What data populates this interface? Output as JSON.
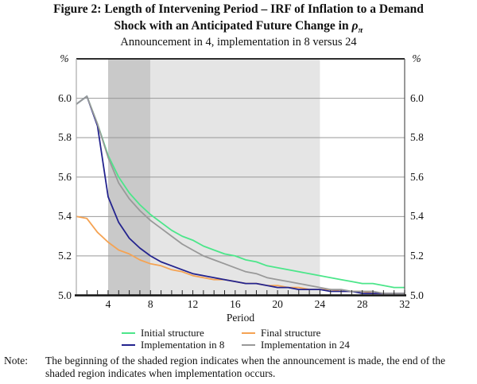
{
  "title": {
    "line1": "Figure 2: Length of Intervening Period – IRF of Inflation to a Demand",
    "line2": "Shock with an Anticipated Future Change in ",
    "rho": "ρ",
    "pi": "π",
    "subtitle": "Announcement in 4, implementation in 8 versus 24"
  },
  "note": {
    "label": "Note:",
    "text": "The beginning of the shaded region indicates when the announcement is made, the end of the shaded region indicates when implementation occurs."
  },
  "chart_data": {
    "type": "line",
    "title": "IRF of Inflation to a Demand Shock",
    "xlabel": "Period",
    "y_unit": "%",
    "x": [
      1,
      2,
      3,
      4,
      5,
      6,
      7,
      8,
      9,
      10,
      11,
      12,
      13,
      14,
      15,
      16,
      17,
      18,
      19,
      20,
      21,
      22,
      23,
      24,
      25,
      26,
      27,
      28,
      29,
      30,
      31,
      32
    ],
    "xlim": [
      1,
      32
    ],
    "ylim": [
      5.0,
      6.2
    ],
    "x_tick_labels": [
      4,
      8,
      12,
      16,
      20,
      24,
      28,
      32
    ],
    "y_ticks": [
      5.0,
      5.2,
      5.4,
      5.6,
      5.8,
      6.0
    ],
    "y_tick_labels": [
      "5.0",
      "5.2",
      "5.4",
      "5.6",
      "5.8",
      "6.0"
    ],
    "grid": true,
    "legend_position": "bottom",
    "regions": [
      {
        "name": "announcement-to-implementation-8",
        "from": 4,
        "to": 8,
        "color": "#c9c9c9"
      },
      {
        "name": "implementation-8-to-24",
        "from": 8,
        "to": 24,
        "color": "#e5e5e5"
      }
    ],
    "series": [
      {
        "name": "Initial structure",
        "color": "#4ce68a",
        "values": [
          5.97,
          6.01,
          5.87,
          5.71,
          5.6,
          5.52,
          5.46,
          5.41,
          5.37,
          5.33,
          5.3,
          5.28,
          5.25,
          5.23,
          5.21,
          5.2,
          5.18,
          5.17,
          5.15,
          5.14,
          5.13,
          5.12,
          5.11,
          5.1,
          5.09,
          5.08,
          5.07,
          5.06,
          5.06,
          5.05,
          5.04,
          5.04
        ]
      },
      {
        "name": "Final structure",
        "color": "#f5a353",
        "values": [
          5.4,
          5.39,
          5.32,
          5.27,
          5.23,
          5.21,
          5.18,
          5.16,
          5.15,
          5.13,
          5.12,
          5.1,
          5.09,
          5.08,
          5.08,
          5.07,
          5.06,
          5.06,
          5.05,
          5.05,
          5.04,
          5.04,
          5.03,
          5.03,
          5.03,
          5.02,
          5.02,
          5.02,
          5.01,
          5.01,
          5.01,
          5.01
        ]
      },
      {
        "name": "Implementation in 8",
        "color": "#23238e",
        "values": [
          5.97,
          6.01,
          5.86,
          5.5,
          5.37,
          5.29,
          5.24,
          5.2,
          5.17,
          5.15,
          5.13,
          5.11,
          5.1,
          5.09,
          5.08,
          5.07,
          5.06,
          5.06,
          5.05,
          5.04,
          5.04,
          5.03,
          5.03,
          5.03,
          5.02,
          5.02,
          5.02,
          5.01,
          5.01,
          5.01,
          5.01,
          5.01
        ]
      },
      {
        "name": "Implementation in 24",
        "color": "#999999",
        "values": [
          5.97,
          6.01,
          5.87,
          5.7,
          5.57,
          5.49,
          5.43,
          5.38,
          5.34,
          5.3,
          5.26,
          5.23,
          5.2,
          5.18,
          5.16,
          5.14,
          5.12,
          5.11,
          5.09,
          5.08,
          5.07,
          5.06,
          5.05,
          5.04,
          5.03,
          5.03,
          5.02,
          5.02,
          5.02,
          5.01,
          5.01,
          5.01
        ]
      }
    ],
    "legend_order": [
      0,
      1,
      2,
      3
    ],
    "axis_color": "#111111",
    "gridline_color": "#999999"
  }
}
